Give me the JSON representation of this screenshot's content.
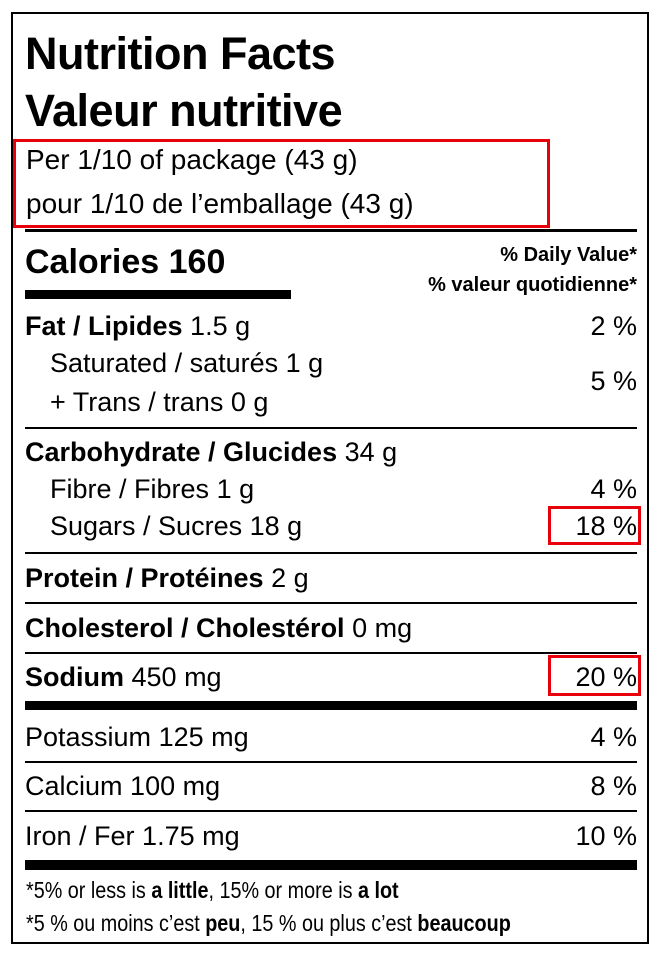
{
  "title_en": "Nutrition Facts",
  "title_fr": "Valeur nutritive",
  "serving_en": "Per 1/10 of package (43 g)",
  "serving_fr": "pour 1/10 de l’emballage (43 g)",
  "calories": {
    "label": "Calories",
    "value": "160"
  },
  "dv_en": "% Daily Value*",
  "dv_fr": "% valeur quotidienne*",
  "nutrients": {
    "fat": {
      "label": "Fat / Lipides",
      "amount": "1.5 g",
      "dv": "2 %"
    },
    "saturated": {
      "label": "Saturated / saturés",
      "amount": "1 g"
    },
    "trans": {
      "label": "+ Trans / trans",
      "amount": "0 g",
      "dv": "5 %"
    },
    "carb": {
      "label": "Carbohydrate / Glucides",
      "amount": "34 g"
    },
    "fibre": {
      "label": "Fibre / Fibres",
      "amount": "1 g",
      "dv": "4 %"
    },
    "sugars": {
      "label": "Sugars / Sucres",
      "amount": "18 g",
      "dv": "18 %"
    },
    "protein": {
      "label": "Protein / Protéines",
      "amount": "2 g"
    },
    "cholesterol": {
      "label": "Cholesterol / Cholestérol",
      "amount": "0 mg"
    },
    "sodium": {
      "label": "Sodium",
      "amount": "450 mg",
      "dv": "20 %"
    },
    "potassium": {
      "label": "Potassium",
      "amount": "125 mg",
      "dv": "4 %"
    },
    "calcium": {
      "label": "Calcium",
      "amount": "100 mg",
      "dv": "8 %"
    },
    "iron": {
      "label": "Iron / Fer",
      "amount": "1.75 mg",
      "dv": "10 %"
    }
  },
  "footnote_en": {
    "a": "*5% or less is ",
    "b": "a little",
    "c": ", 15% or more is ",
    "d": "a lot"
  },
  "footnote_fr": {
    "a": "*5 % ou moins c’est ",
    "b": "peu",
    "c": ", 15 % ou plus c’est ",
    "d": "beaucoup"
  },
  "highlight_color": "#e8000b"
}
